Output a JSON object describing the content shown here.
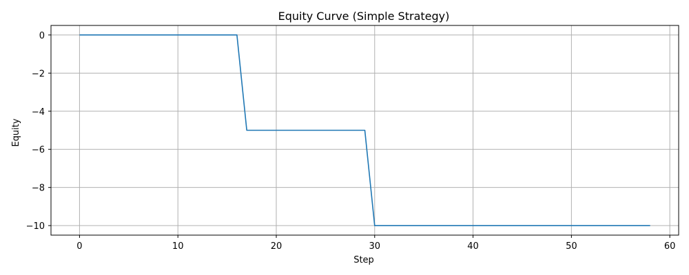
{
  "chart_data": {
    "type": "line",
    "title": "Equity Curve (Simple Strategy)",
    "xlabel": "Step",
    "ylabel": "Equity",
    "xlim": [
      -2.9,
      60.9
    ],
    "ylim": [
      -10.5,
      0.5
    ],
    "xticks": [
      0,
      10,
      20,
      30,
      40,
      50,
      60
    ],
    "yticks": [
      0,
      -2,
      -4,
      -6,
      -8,
      -10
    ],
    "xtick_labels": [
      "0",
      "10",
      "20",
      "30",
      "40",
      "50",
      "60"
    ],
    "ytick_labels": [
      "0",
      "−2",
      "−4",
      "−6",
      "−8",
      "−10"
    ],
    "grid": true,
    "series": [
      {
        "color": "#1f77b4",
        "x": [
          0,
          16,
          17,
          29,
          30,
          58
        ],
        "y": [
          0,
          0,
          -5,
          -5,
          -10,
          -10
        ]
      }
    ]
  }
}
